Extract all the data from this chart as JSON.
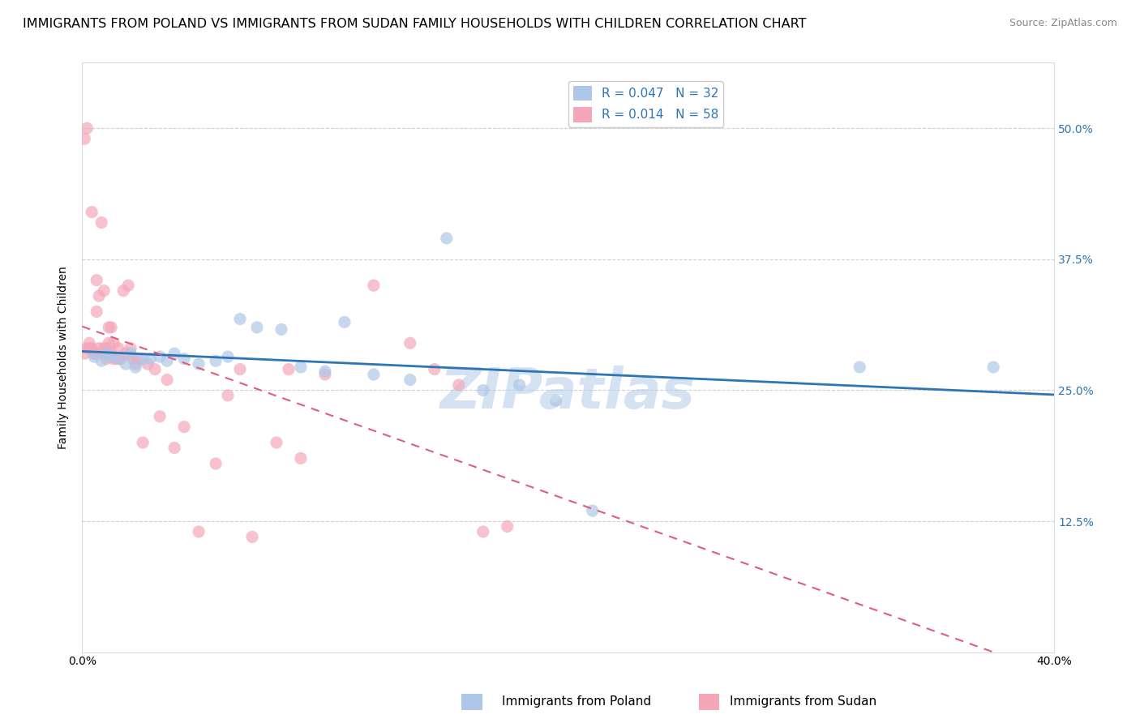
{
  "title": "IMMIGRANTS FROM POLAND VS IMMIGRANTS FROM SUDAN FAMILY HOUSEHOLDS WITH CHILDREN CORRELATION CHART",
  "source": "Source: ZipAtlas.com",
  "ylabel": "Family Households with Children",
  "xmin": 0.0,
  "xmax": 0.4,
  "ymin": 0.0,
  "ymax": 0.5625,
  "ylabel_tick_vals": [
    0.125,
    0.25,
    0.375,
    0.5
  ],
  "ylabel_ticks": [
    "12.5%",
    "25.0%",
    "37.5%",
    "50.0%"
  ],
  "xtick_vals": [
    0.0,
    0.4
  ],
  "xtick_labels": [
    "0.0%",
    "40.0%"
  ],
  "watermark": "ZIPatlas",
  "poland_scatter_color": "#aec6e8",
  "poland_line_color": "#2e75b6",
  "sudan_scatter_color": "#f4a7b9",
  "sudan_line_color": "#e05c7a",
  "background_color": "#ffffff",
  "grid_color": "#d0d0d0",
  "scatter_size": 120,
  "scatter_alpha": 0.7,
  "title_fontsize": 11.5,
  "source_fontsize": 9,
  "tick_fontsize": 10,
  "ylabel_fontsize": 10,
  "watermark_color": "#b8cfe8",
  "watermark_fontsize": 50,
  "legend_fontsize": 11,
  "poland_x": [
    0.005,
    0.008,
    0.01,
    0.012,
    0.015,
    0.018,
    0.02,
    0.022,
    0.025,
    0.028,
    0.032,
    0.035,
    0.038,
    0.042,
    0.048,
    0.055,
    0.06,
    0.065,
    0.072,
    0.082,
    0.09,
    0.1,
    0.108,
    0.12,
    0.135,
    0.15,
    0.165,
    0.18,
    0.195,
    0.21,
    0.32,
    0.375
  ],
  "poland_y": [
    0.282,
    0.278,
    0.285,
    0.282,
    0.28,
    0.275,
    0.285,
    0.272,
    0.28,
    0.28,
    0.282,
    0.278,
    0.285,
    0.28,
    0.275,
    0.278,
    0.282,
    0.318,
    0.31,
    0.308,
    0.272,
    0.268,
    0.315,
    0.265,
    0.26,
    0.395,
    0.25,
    0.255,
    0.24,
    0.135,
    0.272,
    0.272
  ],
  "sudan_x": [
    0.001,
    0.001,
    0.002,
    0.002,
    0.003,
    0.003,
    0.004,
    0.004,
    0.005,
    0.005,
    0.006,
    0.006,
    0.007,
    0.007,
    0.008,
    0.008,
    0.009,
    0.009,
    0.01,
    0.01,
    0.011,
    0.011,
    0.012,
    0.012,
    0.013,
    0.013,
    0.014,
    0.015,
    0.016,
    0.017,
    0.018,
    0.019,
    0.02,
    0.021,
    0.022,
    0.023,
    0.025,
    0.027,
    0.03,
    0.032,
    0.035,
    0.038,
    0.042,
    0.048,
    0.055,
    0.06,
    0.065,
    0.07,
    0.08,
    0.085,
    0.09,
    0.1,
    0.12,
    0.135,
    0.145,
    0.155,
    0.165,
    0.175
  ],
  "sudan_y": [
    0.285,
    0.49,
    0.29,
    0.5,
    0.295,
    0.29,
    0.29,
    0.42,
    0.285,
    0.285,
    0.325,
    0.355,
    0.29,
    0.34,
    0.285,
    0.41,
    0.29,
    0.345,
    0.28,
    0.29,
    0.31,
    0.295,
    0.285,
    0.31,
    0.28,
    0.295,
    0.28,
    0.29,
    0.28,
    0.345,
    0.285,
    0.35,
    0.29,
    0.28,
    0.275,
    0.28,
    0.2,
    0.275,
    0.27,
    0.225,
    0.26,
    0.195,
    0.215,
    0.115,
    0.18,
    0.245,
    0.27,
    0.11,
    0.2,
    0.27,
    0.185,
    0.265,
    0.35,
    0.295,
    0.27,
    0.255,
    0.115,
    0.12
  ]
}
